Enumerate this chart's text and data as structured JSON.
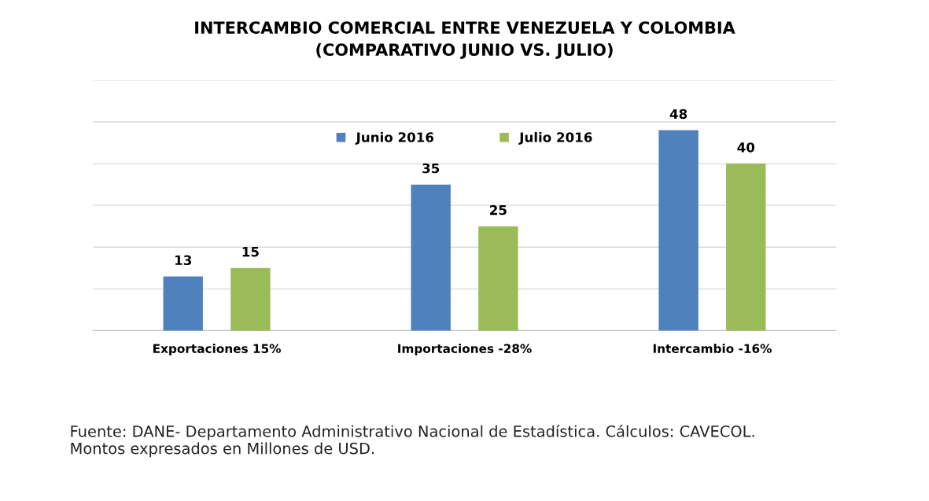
{
  "chart_data": {
    "type": "bar",
    "title": "INTERCAMBIO COMERCIAL ENTRE VENEZUELA Y COLOMBIA\n(COMPARATIVO JUNIO VS. JULIO)",
    "categories": [
      "Exportaciones 15%",
      "Importaciones -28%",
      "Intercambio -16%"
    ],
    "series": [
      {
        "name": "Junio 2016",
        "color": "#4f81bd",
        "values": [
          13,
          35,
          48
        ]
      },
      {
        "name": "Julio 2016",
        "color": "#9bbb59",
        "values": [
          15,
          25,
          40
        ]
      }
    ],
    "ylim": [
      0,
      60
    ],
    "yticks": [
      {
        "value": 0,
        "label": null
      },
      {
        "value": 10,
        "label": null
      },
      {
        "value": 20,
        "label": null
      },
      {
        "value": 30,
        "label": null
      },
      {
        "value": 40,
        "label": null
      },
      {
        "value": 50,
        "label": null
      },
      {
        "value": 60,
        "label": null
      }
    ],
    "tick_labels": "x",
    "grid": "y",
    "legend": "top",
    "data_labels": true,
    "annotations": [
      "Fuente: DANE- Departamento Administrativo Nacional de Estadística. Cálculos: CAVECOL.\nMontos expresados en Millones de USD."
    ]
  }
}
